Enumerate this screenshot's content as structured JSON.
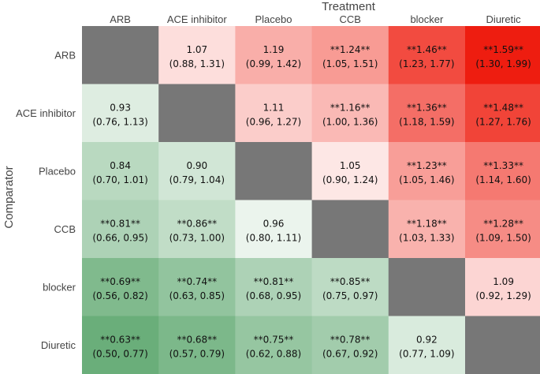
{
  "chart_data": {
    "type": "heatmap",
    "title": "",
    "xlabel": "Treatment",
    "ylabel": "Comparator",
    "columns": [
      "ARB",
      "ACE inhibitor",
      "Placebo",
      "CCB",
      "blocker",
      "Diuretic"
    ],
    "rows": [
      "ARB",
      "ACE inhibitor",
      "Placebo",
      "CCB",
      "blocker",
      "Diuretic"
    ],
    "diagonal_color": "#777777",
    "cells": [
      [
        null,
        {
          "value": 1.07,
          "ci": [
            0.88,
            1.31
          ],
          "significant": false,
          "label": "1.07",
          "ci_label": "(0.88, 1.31)"
        },
        {
          "value": 1.19,
          "ci": [
            0.99,
            1.42
          ],
          "significant": false,
          "label": "1.19",
          "ci_label": "(0.99, 1.42)"
        },
        {
          "value": 1.24,
          "ci": [
            1.05,
            1.51
          ],
          "significant": true,
          "label": "**1.24**",
          "ci_label": "(1.05, 1.51)"
        },
        {
          "value": 1.46,
          "ci": [
            1.23,
            1.77
          ],
          "significant": true,
          "label": "**1.46**",
          "ci_label": "(1.23, 1.77)"
        },
        {
          "value": 1.59,
          "ci": [
            1.3,
            1.99
          ],
          "significant": true,
          "label": "**1.59**",
          "ci_label": "(1.30, 1.99)"
        }
      ],
      [
        {
          "value": 0.93,
          "ci": [
            0.76,
            1.13
          ],
          "significant": false,
          "label": "0.93",
          "ci_label": "(0.76, 1.13)"
        },
        null,
        {
          "value": 1.11,
          "ci": [
            0.96,
            1.27
          ],
          "significant": false,
          "label": "1.11",
          "ci_label": "(0.96, 1.27)"
        },
        {
          "value": 1.16,
          "ci": [
            1.0,
            1.36
          ],
          "significant": true,
          "label": "**1.16**",
          "ci_label": "(1.00, 1.36)"
        },
        {
          "value": 1.36,
          "ci": [
            1.18,
            1.59
          ],
          "significant": true,
          "label": "**1.36**",
          "ci_label": "(1.18, 1.59)"
        },
        {
          "value": 1.48,
          "ci": [
            1.27,
            1.76
          ],
          "significant": true,
          "label": "**1.48**",
          "ci_label": "(1.27, 1.76)"
        }
      ],
      [
        {
          "value": 0.84,
          "ci": [
            0.7,
            1.01
          ],
          "significant": false,
          "label": "0.84",
          "ci_label": "(0.70, 1.01)"
        },
        {
          "value": 0.9,
          "ci": [
            0.79,
            1.04
          ],
          "significant": false,
          "label": "0.90",
          "ci_label": "(0.79, 1.04)"
        },
        null,
        {
          "value": 1.05,
          "ci": [
            0.9,
            1.24
          ],
          "significant": false,
          "label": "1.05",
          "ci_label": "(0.90, 1.24)"
        },
        {
          "value": 1.23,
          "ci": [
            1.05,
            1.46
          ],
          "significant": true,
          "label": "**1.23**",
          "ci_label": "(1.05, 1.46)"
        },
        {
          "value": 1.33,
          "ci": [
            1.14,
            1.6
          ],
          "significant": true,
          "label": "**1.33**",
          "ci_label": "(1.14, 1.60)"
        }
      ],
      [
        {
          "value": 0.81,
          "ci": [
            0.66,
            0.95
          ],
          "significant": true,
          "label": "**0.81**",
          "ci_label": "(0.66, 0.95)"
        },
        {
          "value": 0.86,
          "ci": [
            0.73,
            1.0
          ],
          "significant": true,
          "label": "**0.86**",
          "ci_label": "(0.73, 1.00)"
        },
        {
          "value": 0.96,
          "ci": [
            0.8,
            1.11
          ],
          "significant": false,
          "label": "0.96",
          "ci_label": "(0.80, 1.11)"
        },
        null,
        {
          "value": 1.18,
          "ci": [
            1.03,
            1.33
          ],
          "significant": true,
          "label": "**1.18**",
          "ci_label": "(1.03, 1.33)"
        },
        {
          "value": 1.28,
          "ci": [
            1.09,
            1.5
          ],
          "significant": true,
          "label": "**1.28**",
          "ci_label": "(1.09, 1.50)"
        }
      ],
      [
        {
          "value": 0.69,
          "ci": [
            0.56,
            0.82
          ],
          "significant": true,
          "label": "**0.69**",
          "ci_label": "(0.56, 0.82)"
        },
        {
          "value": 0.74,
          "ci": [
            0.63,
            0.85
          ],
          "significant": true,
          "label": "**0.74**",
          "ci_label": "(0.63, 0.85)"
        },
        {
          "value": 0.81,
          "ci": [
            0.68,
            0.95
          ],
          "significant": true,
          "label": "**0.81**",
          "ci_label": "(0.68, 0.95)"
        },
        {
          "value": 0.85,
          "ci": [
            0.75,
            0.97
          ],
          "significant": true,
          "label": "**0.85**",
          "ci_label": "(0.75, 0.97)"
        },
        null,
        {
          "value": 1.09,
          "ci": [
            0.92,
            1.29
          ],
          "significant": false,
          "label": "1.09",
          "ci_label": "(0.92, 1.29)"
        }
      ],
      [
        {
          "value": 0.63,
          "ci": [
            0.5,
            0.77
          ],
          "significant": true,
          "label": "**0.63**",
          "ci_label": "(0.50, 0.77)"
        },
        {
          "value": 0.68,
          "ci": [
            0.57,
            0.79
          ],
          "significant": true,
          "label": "**0.68**",
          "ci_label": "(0.57, 0.79)"
        },
        {
          "value": 0.75,
          "ci": [
            0.62,
            0.88
          ],
          "significant": true,
          "label": "**0.75**",
          "ci_label": "(0.62, 0.88)"
        },
        {
          "value": 0.78,
          "ci": [
            0.67,
            0.92
          ],
          "significant": true,
          "label": "**0.78**",
          "ci_label": "(0.67, 0.92)"
        },
        {
          "value": 0.92,
          "ci": [
            0.77,
            1.09
          ],
          "significant": false,
          "label": "0.92",
          "ci_label": "(0.77, 1.09)"
        },
        null
      ]
    ],
    "color_scale": {
      "low": "#5fa870",
      "mid": "#ffffff",
      "high": "#ee1a0c",
      "min": 0.6,
      "center": 1.0,
      "max": 1.6
    },
    "grid": false
  }
}
